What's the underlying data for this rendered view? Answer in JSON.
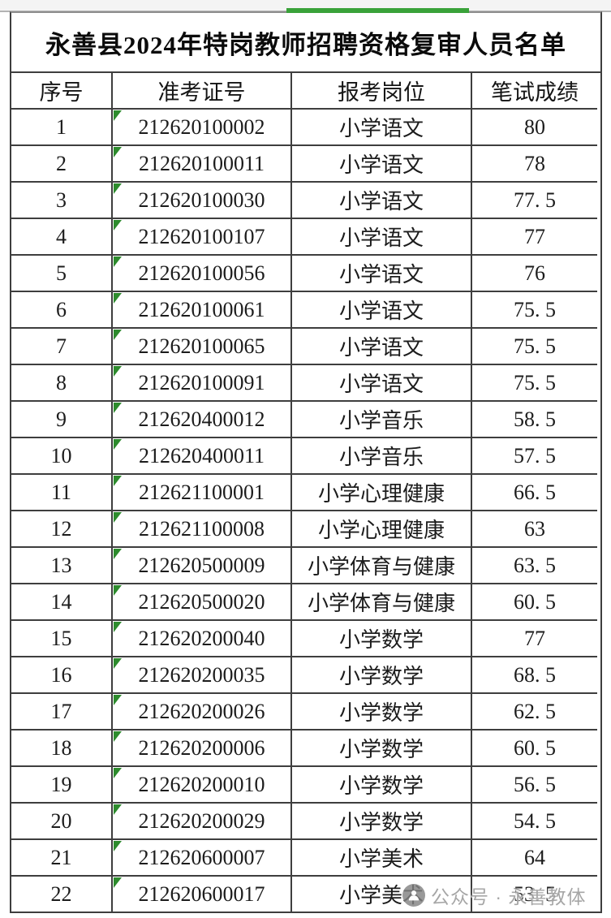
{
  "title": "永善县2024年特岗教师招聘资格复审人员名单",
  "table": {
    "columns": [
      {
        "key": "no",
        "label": "序号"
      },
      {
        "key": "ticket",
        "label": "准考证号"
      },
      {
        "key": "position",
        "label": "报考岗位"
      },
      {
        "key": "score",
        "label": "笔试成绩"
      }
    ],
    "rows": [
      {
        "no": "1",
        "ticket": "212620100002",
        "position": "小学语文",
        "score": "80"
      },
      {
        "no": "2",
        "ticket": "212620100011",
        "position": "小学语文",
        "score": "78"
      },
      {
        "no": "3",
        "ticket": "212620100030",
        "position": "小学语文",
        "score": "77. 5"
      },
      {
        "no": "4",
        "ticket": "212620100107",
        "position": "小学语文",
        "score": "77"
      },
      {
        "no": "5",
        "ticket": "212620100056",
        "position": "小学语文",
        "score": "76"
      },
      {
        "no": "6",
        "ticket": "212620100061",
        "position": "小学语文",
        "score": "75. 5"
      },
      {
        "no": "7",
        "ticket": "212620100065",
        "position": "小学语文",
        "score": "75. 5"
      },
      {
        "no": "8",
        "ticket": "212620100091",
        "position": "小学语文",
        "score": "75. 5"
      },
      {
        "no": "9",
        "ticket": "212620400012",
        "position": "小学音乐",
        "score": "58. 5"
      },
      {
        "no": "10",
        "ticket": "212620400011",
        "position": "小学音乐",
        "score": "57. 5"
      },
      {
        "no": "11",
        "ticket": "212621100001",
        "position": "小学心理健康",
        "score": "66. 5"
      },
      {
        "no": "12",
        "ticket": "212621100008",
        "position": "小学心理健康",
        "score": "63"
      },
      {
        "no": "13",
        "ticket": "212620500009",
        "position": "小学体育与健康",
        "score": "63. 5"
      },
      {
        "no": "14",
        "ticket": "212620500020",
        "position": "小学体育与健康",
        "score": "60. 5"
      },
      {
        "no": "15",
        "ticket": "212620200040",
        "position": "小学数学",
        "score": "77"
      },
      {
        "no": "16",
        "ticket": "212620200035",
        "position": "小学数学",
        "score": "68. 5"
      },
      {
        "no": "17",
        "ticket": "212620200026",
        "position": "小学数学",
        "score": "62. 5"
      },
      {
        "no": "18",
        "ticket": "212620200006",
        "position": "小学数学",
        "score": "60. 5"
      },
      {
        "no": "19",
        "ticket": "212620200010",
        "position": "小学数学",
        "score": "56. 5"
      },
      {
        "no": "20",
        "ticket": "212620200029",
        "position": "小学数学",
        "score": "54. 5"
      },
      {
        "no": "21",
        "ticket": "212620600007",
        "position": "小学美术",
        "score": "64"
      },
      {
        "no": "22",
        "ticket": "212620600017",
        "position": "小学美术",
        "score": "53. 5"
      }
    ]
  },
  "watermark": {
    "text": "公众号 · 永善教体",
    "icon": "wechat-official-account-logo"
  },
  "decorations": {
    "top_bar_color": "#3aa23a",
    "text_format_triangle_color": "#2d8b2d",
    "border_color": "#3e3e3e",
    "watermark_gray": "#969696"
  }
}
